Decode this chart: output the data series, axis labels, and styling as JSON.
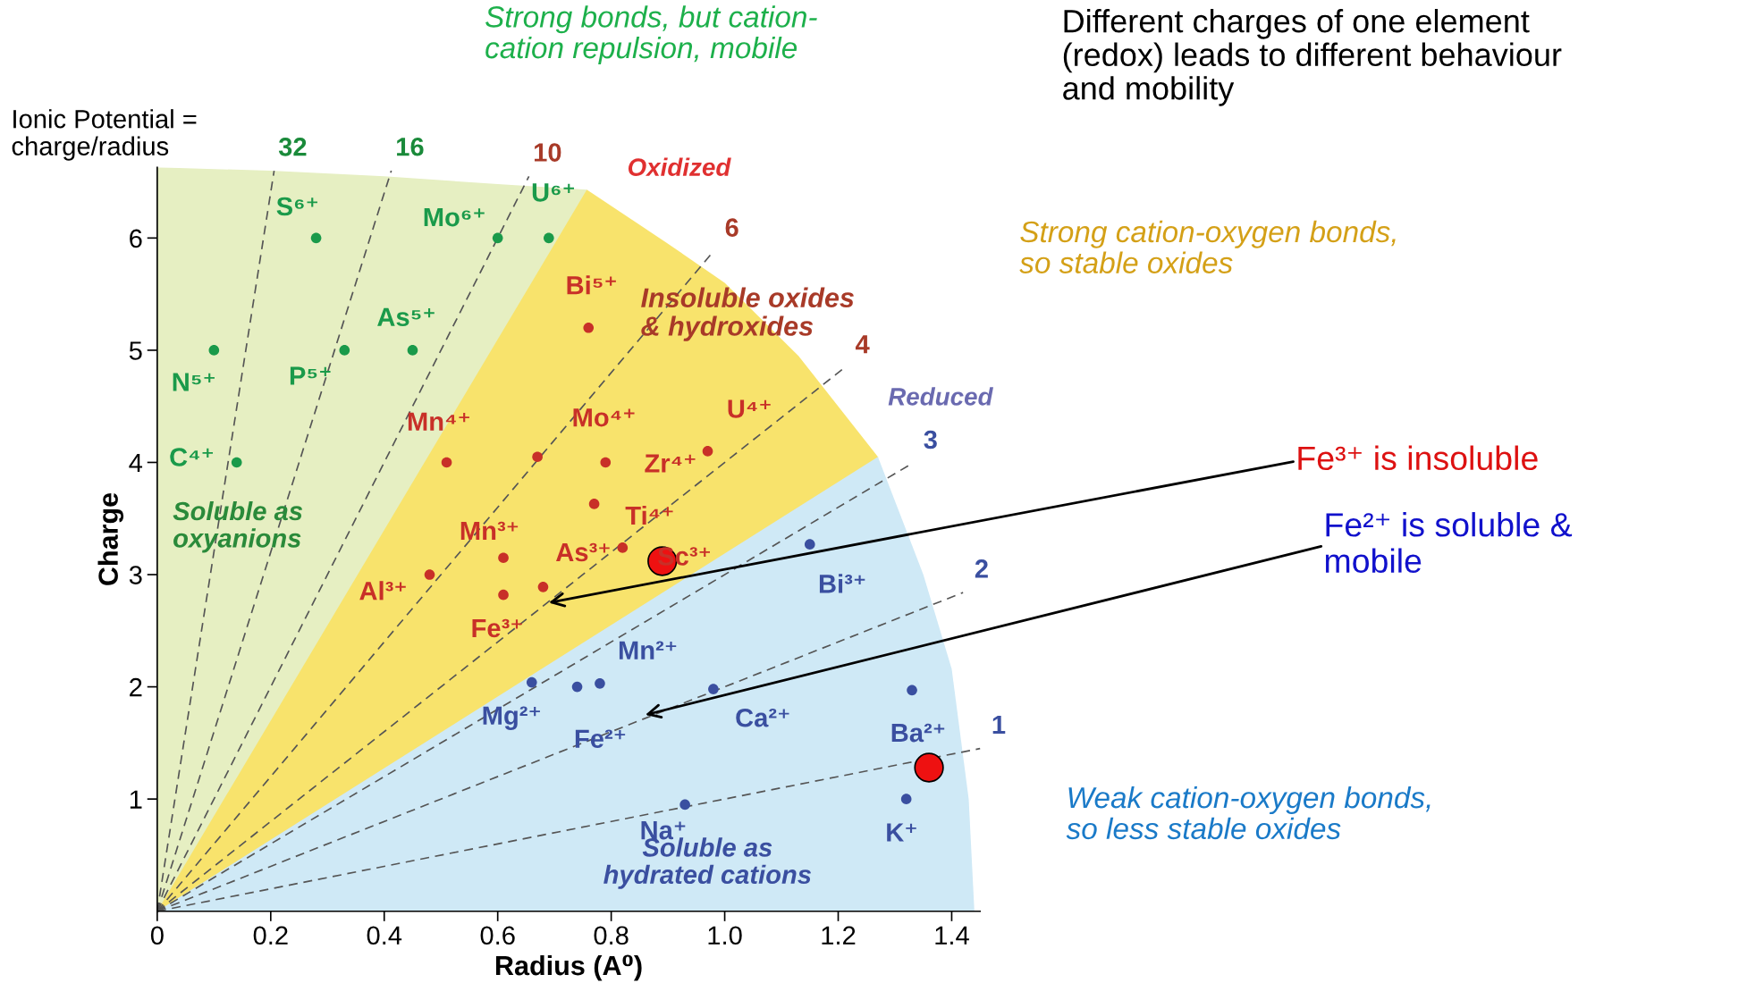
{
  "chart_data": {
    "type": "scatter",
    "xlabel": "Radius (A⁰)",
    "ylabel": "Charge",
    "xlim": [
      0,
      1.45
    ],
    "ylim": [
      0,
      6.63
    ],
    "xticks": [
      0,
      0.2,
      0.4,
      0.6,
      0.8,
      {
        "value": 1.0,
        "label": "1.0"
      },
      1.2,
      1.4
    ],
    "yticks": [
      1,
      2,
      3,
      4,
      5,
      6
    ],
    "grid": false,
    "legend": false,
    "series": [
      {
        "type": "area",
        "color": "#e6efc2",
        "x": [
          0,
          0.2,
          0.4,
          0.6,
          0.757
        ],
        "values": [
          6.63,
          6.6,
          6.55,
          6.48,
          6.43
        ]
      },
      {
        "type": "area",
        "color": "#f8e36c",
        "x": [
          0,
          0.757,
          0.9,
          1.0,
          1.13,
          1.27
        ],
        "values": [
          0,
          6.43,
          5.95,
          5.6,
          4.95,
          4.05
        ]
      },
      {
        "type": "area",
        "color": "#cfe9f6",
        "x": [
          0,
          1.27,
          1.35,
          1.4,
          1.43,
          1.44
        ],
        "values": [
          0,
          4.05,
          3.0,
          2.16,
          1.0,
          0
        ]
      },
      {
        "type": "line",
        "name": "32",
        "color": "#555555",
        "line_style": "dashed",
        "x": [
          0,
          0.206
        ],
        "values": [
          0,
          6.6
        ]
      },
      {
        "type": "line",
        "name": "16",
        "color": "#555555",
        "line_style": "dashed",
        "x": [
          0,
          0.4125
        ],
        "values": [
          0,
          6.6
        ]
      },
      {
        "type": "line",
        "name": "10",
        "color": "#555555",
        "line_style": "dashed",
        "x": [
          0,
          0.655
        ],
        "values": [
          0,
          6.55
        ]
      },
      {
        "type": "line",
        "name": "6",
        "color": "#555555",
        "line_style": "dashed",
        "x": [
          0,
          0.98
        ],
        "values": [
          0,
          5.88
        ]
      },
      {
        "type": "line",
        "name": "4",
        "color": "#555555",
        "line_style": "dashed",
        "x": [
          0,
          1.21
        ],
        "values": [
          0,
          4.84
        ]
      },
      {
        "type": "line",
        "name": "3",
        "color": "#555555",
        "line_style": "dashed",
        "x": [
          0,
          1.33
        ],
        "values": [
          0,
          3.99
        ]
      },
      {
        "type": "line",
        "name": "2",
        "color": "#555555",
        "line_style": "dashed",
        "x": [
          0,
          1.42
        ],
        "values": [
          0,
          2.84
        ]
      },
      {
        "type": "line",
        "name": "1",
        "color": "#555555",
        "line_style": "dashed",
        "x": [
          0,
          1.45
        ],
        "values": [
          0,
          1.45
        ]
      },
      {
        "color": "#1a9a4a",
        "marker": "circle",
        "x": [
          0.28,
          0.6,
          0.69,
          0.1,
          0.33,
          0.45,
          0.14
        ],
        "values": [
          6,
          6,
          6,
          5,
          5,
          5,
          4
        ],
        "value_labels": [
          "S⁶⁺",
          "Mo⁶⁺",
          "U⁶⁺",
          "N⁵⁺",
          "P⁵⁺",
          "As⁵⁺",
          "C⁴⁺"
        ]
      },
      {
        "color": "#c83028",
        "marker": "circle",
        "x": [
          0.76,
          0.51,
          0.67,
          0.79,
          0.97,
          0.77,
          0.82,
          0.61,
          0.48,
          0.61,
          0.68
        ],
        "values": [
          5.2,
          4.0,
          4.05,
          4.0,
          4.1,
          3.63,
          3.24,
          3.15,
          3.0,
          2.82,
          2.89
        ],
        "value_labels": [
          "Bi⁵⁺",
          "Mn⁴⁺",
          "Mo⁴⁺",
          "Zr⁴⁺",
          "U⁴⁺",
          "Ti⁴⁺",
          "Sc³⁺",
          "Mn³⁺",
          "Al³⁺",
          "Fe³⁺",
          "As³⁺"
        ]
      },
      {
        "color": "#3a4fa0",
        "marker": "circle",
        "x": [
          1.15,
          0.66,
          0.74,
          0.78,
          0.98,
          1.33,
          0.93,
          1.32
        ],
        "values": [
          3.27,
          2.04,
          2.0,
          2.03,
          1.98,
          1.97,
          0.95,
          1.0
        ],
        "value_labels": [
          "Bi³⁺",
          "Mg²⁺",
          "Fe²⁺",
          "Mn²⁺",
          "Ca²⁺",
          "Ba²⁺",
          "Na⁺",
          "K⁺"
        ]
      },
      {
        "type": "bubble",
        "color": "#ee1111",
        "marker": "circle",
        "x": [
          0.89,
          1.36
        ],
        "values": [
          3.12,
          1.28
        ]
      }
    ],
    "annotations": [
      "Strong bonds, but cation-\ncation repulsion, mobile",
      "Different charges of one element\n(redox) leads to different behaviour\nand mobility",
      "Ionic Potential =\ncharge/radius",
      "Oxidized",
      "Insoluble oxides\n& hydroxides",
      "Reduced",
      "Strong cation-oxygen bonds,\nso stable oxides",
      "Weak cation-oxygen bonds,\nso less stable oxides",
      "Soluble as\noxyanions",
      "Soluble as\nhydrated cations",
      {
        "text": "Fe³⁺ is insoluble",
        "x": 0.69,
        "y": 2.75
      },
      {
        "text": "Fe²⁺ is soluble &\nmobile",
        "x": 0.86,
        "y": 1.75
      }
    ]
  }
}
